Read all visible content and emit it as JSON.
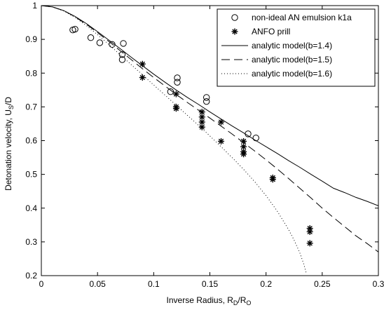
{
  "chart_data": {
    "type": "scatter",
    "xlabel": "Inverse Radius, R",
    "xlabel_sub1": "D",
    "xlabel_mid": "/R",
    "xlabel_sub2": "O",
    "ylabel": "Detonation velocity, U",
    "ylabel_sub": "S",
    "ylabel_tail": "/D",
    "xlim": [
      0,
      0.3
    ],
    "ylim": [
      0.2,
      1.0
    ],
    "xticks": [
      0,
      0.05,
      0.1,
      0.15,
      0.2,
      0.25,
      0.3
    ],
    "xtick_labels": [
      "0",
      "0.05",
      "0.1",
      "0.15",
      "0.2",
      "0.25",
      "0.3"
    ],
    "yticks": [
      0.2,
      0.3,
      0.4,
      0.5,
      0.6,
      0.7,
      0.8,
      0.9,
      1.0
    ],
    "ytick_labels": [
      "0.2",
      "0.3",
      "0.4",
      "0.5",
      "0.6",
      "0.7",
      "0.8",
      "0.9",
      "1"
    ],
    "grid": false,
    "legend_position": "top-right",
    "series": [
      {
        "name": "non-ideal AN emulsion k1a",
        "style": "circle",
        "points": [
          [
            0.028,
            0.928
          ],
          [
            0.03,
            0.93
          ],
          [
            0.044,
            0.905
          ],
          [
            0.052,
            0.89
          ],
          [
            0.063,
            0.885
          ],
          [
            0.072,
            0.855
          ],
          [
            0.072,
            0.84
          ],
          [
            0.073,
            0.888
          ],
          [
            0.115,
            0.745
          ],
          [
            0.121,
            0.786
          ],
          [
            0.121,
            0.773
          ],
          [
            0.147,
            0.728
          ],
          [
            0.147,
            0.716
          ],
          [
            0.184,
            0.62
          ],
          [
            0.191,
            0.608
          ]
        ]
      },
      {
        "name": "ANFO prill",
        "style": "asterisk",
        "points": [
          [
            0.09,
            0.827
          ],
          [
            0.09,
            0.787
          ],
          [
            0.12,
            0.738
          ],
          [
            0.12,
            0.7
          ],
          [
            0.12,
            0.695
          ],
          [
            0.143,
            0.685
          ],
          [
            0.143,
            0.67
          ],
          [
            0.143,
            0.655
          ],
          [
            0.143,
            0.64
          ],
          [
            0.16,
            0.655
          ],
          [
            0.16,
            0.598
          ],
          [
            0.18,
            0.598
          ],
          [
            0.18,
            0.582
          ],
          [
            0.18,
            0.567
          ],
          [
            0.18,
            0.56
          ],
          [
            0.206,
            0.49
          ],
          [
            0.206,
            0.485
          ],
          [
            0.239,
            0.34
          ],
          [
            0.239,
            0.33
          ],
          [
            0.239,
            0.296
          ]
        ]
      },
      {
        "name": "analytic model(b=1.4)",
        "style": "solid",
        "points": [
          [
            0,
            1.0
          ],
          [
            0.01,
            0.996
          ],
          [
            0.02,
            0.985
          ],
          [
            0.03,
            0.968
          ],
          [
            0.04,
            0.947
          ],
          [
            0.05,
            0.923
          ],
          [
            0.06,
            0.898
          ],
          [
            0.07,
            0.873
          ],
          [
            0.08,
            0.847
          ],
          [
            0.09,
            0.822
          ],
          [
            0.1,
            0.797
          ],
          [
            0.11,
            0.773
          ],
          [
            0.12,
            0.75
          ],
          [
            0.13,
            0.728
          ],
          [
            0.14,
            0.707
          ],
          [
            0.15,
            0.685
          ],
          [
            0.16,
            0.664
          ],
          [
            0.17,
            0.643
          ],
          [
            0.18,
            0.623
          ],
          [
            0.19,
            0.602
          ],
          [
            0.2,
            0.582
          ],
          [
            0.21,
            0.562
          ],
          [
            0.22,
            0.541
          ],
          [
            0.23,
            0.521
          ],
          [
            0.24,
            0.5
          ],
          [
            0.25,
            0.48
          ],
          [
            0.26,
            0.459
          ],
          [
            0.27,
            0.446
          ],
          [
            0.28,
            0.432
          ],
          [
            0.29,
            0.42
          ],
          [
            0.3,
            0.407
          ]
        ]
      },
      {
        "name": "analytic model(b=1.5)",
        "style": "dashed",
        "points": [
          [
            0,
            1.0
          ],
          [
            0.01,
            0.996
          ],
          [
            0.02,
            0.985
          ],
          [
            0.03,
            0.967
          ],
          [
            0.04,
            0.945
          ],
          [
            0.05,
            0.92
          ],
          [
            0.06,
            0.894
          ],
          [
            0.07,
            0.867
          ],
          [
            0.08,
            0.84
          ],
          [
            0.09,
            0.813
          ],
          [
            0.1,
            0.787
          ],
          [
            0.11,
            0.762
          ],
          [
            0.12,
            0.737
          ],
          [
            0.13,
            0.713
          ],
          [
            0.14,
            0.69
          ],
          [
            0.15,
            0.667
          ],
          [
            0.16,
            0.643
          ],
          [
            0.17,
            0.619
          ],
          [
            0.18,
            0.594
          ],
          [
            0.19,
            0.569
          ],
          [
            0.2,
            0.543
          ],
          [
            0.21,
            0.516
          ],
          [
            0.22,
            0.488
          ],
          [
            0.23,
            0.459
          ],
          [
            0.24,
            0.43
          ],
          [
            0.25,
            0.4
          ],
          [
            0.26,
            0.372
          ],
          [
            0.27,
            0.345
          ],
          [
            0.28,
            0.318
          ],
          [
            0.29,
            0.295
          ],
          [
            0.3,
            0.27
          ]
        ]
      },
      {
        "name": "analytic model(b=1.6)",
        "style": "dotted",
        "points": [
          [
            0,
            1.0
          ],
          [
            0.01,
            0.996
          ],
          [
            0.02,
            0.984
          ],
          [
            0.03,
            0.965
          ],
          [
            0.04,
            0.941
          ],
          [
            0.05,
            0.914
          ],
          [
            0.06,
            0.885
          ],
          [
            0.07,
            0.855
          ],
          [
            0.08,
            0.825
          ],
          [
            0.09,
            0.795
          ],
          [
            0.1,
            0.765
          ],
          [
            0.11,
            0.735
          ],
          [
            0.12,
            0.705
          ],
          [
            0.13,
            0.675
          ],
          [
            0.14,
            0.645
          ],
          [
            0.15,
            0.614
          ],
          [
            0.16,
            0.582
          ],
          [
            0.17,
            0.549
          ],
          [
            0.18,
            0.515
          ],
          [
            0.19,
            0.478
          ],
          [
            0.2,
            0.437
          ],
          [
            0.21,
            0.391
          ],
          [
            0.22,
            0.337
          ],
          [
            0.225,
            0.305
          ],
          [
            0.23,
            0.268
          ],
          [
            0.2335,
            0.235
          ],
          [
            0.236,
            0.205
          ]
        ]
      }
    ]
  }
}
